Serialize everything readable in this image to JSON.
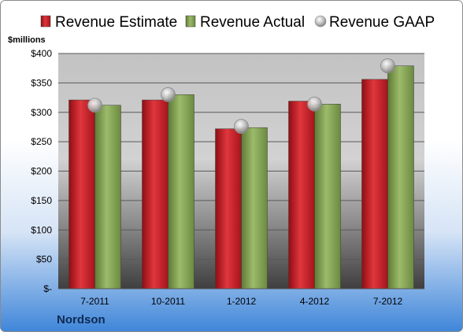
{
  "chart_data": {
    "type": "bar",
    "company": "Nordson",
    "unit_label": "$millions",
    "categories": [
      "7-2011",
      "10-2011",
      "1-2012",
      "4-2012",
      "7-2012"
    ],
    "series": [
      {
        "name": "Revenue Estimate",
        "kind": "bar",
        "color": "#c9232b",
        "values": [
          321,
          321,
          272,
          319,
          356
        ]
      },
      {
        "name": "Revenue Actual",
        "kind": "bar",
        "color": "#8aa75a",
        "values": [
          312,
          330,
          274,
          314,
          379
        ]
      },
      {
        "name": "Revenue GAAP",
        "kind": "marker",
        "color": "#b8b8b8",
        "values": [
          312,
          330,
          276,
          314,
          379
        ]
      }
    ],
    "ylim": [
      0,
      400
    ],
    "y_ticks": [
      {
        "value": 0,
        "label": "$-"
      },
      {
        "value": 50,
        "label": "$50"
      },
      {
        "value": 100,
        "label": "$100"
      },
      {
        "value": 150,
        "label": "$150"
      },
      {
        "value": 200,
        "label": "$200"
      },
      {
        "value": 250,
        "label": "$250"
      },
      {
        "value": 300,
        "label": "$300"
      },
      {
        "value": 350,
        "label": "$350"
      },
      {
        "value": 400,
        "label": "$400"
      }
    ],
    "grid": true,
    "legend_position": "top"
  }
}
